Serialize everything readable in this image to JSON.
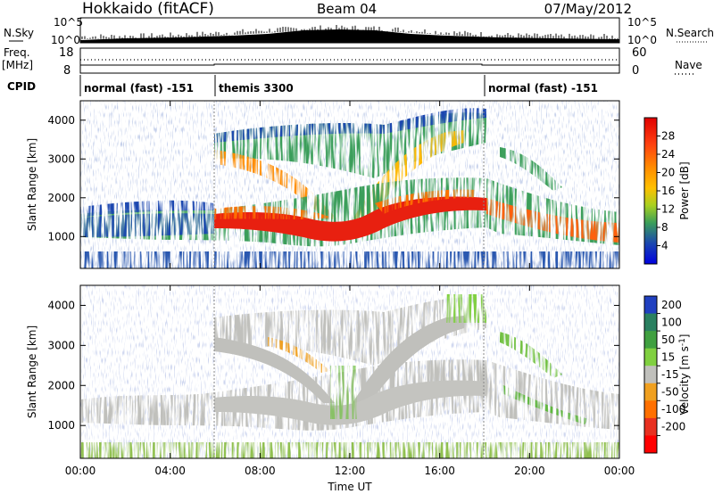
{
  "header": {
    "station": "Hokkaido (fitACF)",
    "beam": "Beam 04",
    "date": "07/May/2012"
  },
  "top_panels": {
    "nsky_label": "N.Sky",
    "nsky_ticks": [
      "10^5",
      "10^0"
    ],
    "nsearch_label": "N.Search",
    "freq_label_1": "Freq.",
    "freq_label_2": "[MHz]",
    "freq_ticks": [
      "18",
      "8"
    ],
    "nave_label": "Nave",
    "nave_ticks": [
      "60",
      "0"
    ],
    "cpid_label": "CPID",
    "cpid_segments": [
      {
        "label": "normal (fast) -151",
        "start_h": 0,
        "end_h": 6
      },
      {
        "label": "themis 3300",
        "start_h": 6,
        "end_h": 18
      },
      {
        "label": "normal (fast) -151",
        "start_h": 18,
        "end_h": 24
      }
    ]
  },
  "chart_data": [
    {
      "type": "heatmap",
      "parameter": "power",
      "xlabel": "Time UT",
      "ylabel": "Slant Range [km]",
      "xlim": [
        0,
        24
      ],
      "ylim": [
        180,
        4500
      ],
      "yticks": [
        "1000",
        "2000",
        "3000",
        "4000"
      ],
      "colorbar": {
        "label": "Power [dB]",
        "ticks": [
          "28",
          "24",
          "20",
          "16",
          "12",
          "8",
          "4"
        ],
        "colors": [
          "#e00000",
          "#ff4010",
          "#ff8c00",
          "#ffb800",
          "#a8d020",
          "#3a9e5a",
          "#1a46b0",
          "#0000e0"
        ],
        "range": [
          0,
          32
        ]
      }
    },
    {
      "type": "heatmap",
      "parameter": "velocity",
      "xlabel": "Time UT",
      "ylabel": "Slant Range [km]",
      "xlim": [
        0,
        24
      ],
      "ylim": [
        180,
        4500
      ],
      "yticks": [
        "1000",
        "2000",
        "3000",
        "4000"
      ],
      "xticks": [
        "00:00",
        "04:00",
        "08:00",
        "12:00",
        "16:00",
        "20:00",
        "00:00"
      ],
      "colorbar": {
        "label": "Velocity [m s^-1]",
        "ticks": [
          "200",
          "100",
          "50",
          "15",
          "-15",
          "-50",
          "-100",
          "-200"
        ],
        "colors": [
          "#2040c0",
          "#2a8060",
          "#40a040",
          "#80d040",
          "#c0c0bc",
          "#f0a020",
          "#ff7000",
          "#e83020",
          "#ff0000"
        ]
      }
    }
  ]
}
